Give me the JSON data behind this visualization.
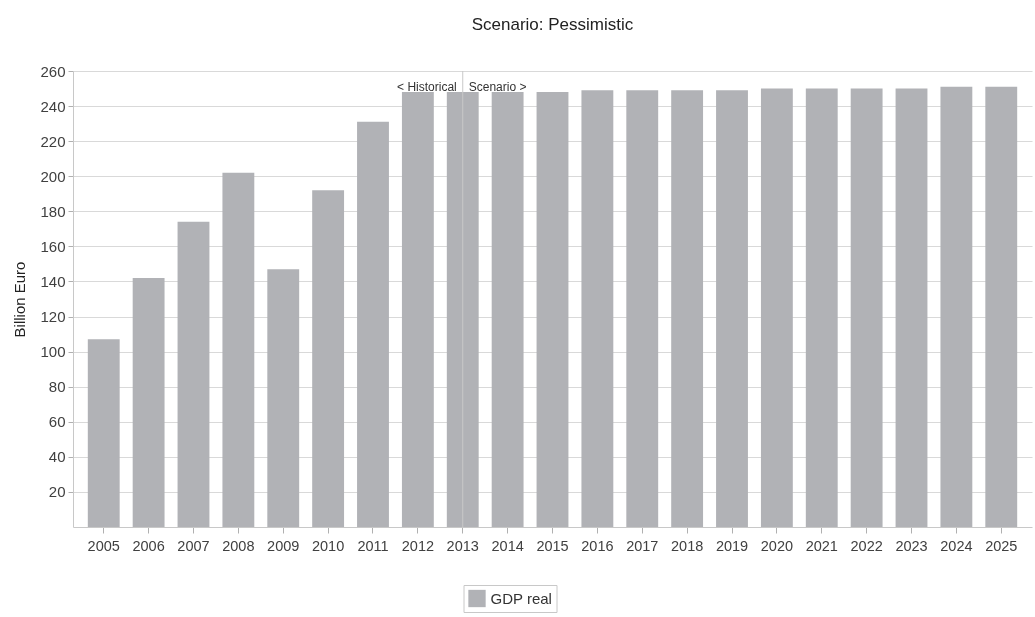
{
  "chart_data": {
    "type": "bar",
    "title": "Scenario: Pessimistic",
    "ylabel": "Billion Euro",
    "categories": [
      "2005",
      "2006",
      "2007",
      "2008",
      "2009",
      "2010",
      "2011",
      "2012",
      "2013",
      "2014",
      "2015",
      "2016",
      "2017",
      "2018",
      "2019",
      "2020",
      "2021",
      "2022",
      "2023",
      "2024",
      "2025"
    ],
    "series": [
      {
        "name": "GDP real",
        "color": "#b1b2b6",
        "values": [
          107,
          142,
          174,
          202,
          147,
          192,
          231,
          248,
          248,
          248,
          248,
          249,
          249,
          249,
          249,
          250,
          250,
          250,
          250,
          251,
          251
        ]
      }
    ],
    "ylim": [
      0,
      260
    ],
    "yticks": [
      20,
      40,
      60,
      80,
      100,
      120,
      140,
      160,
      180,
      200,
      220,
      240,
      260
    ],
    "grid": "y",
    "legend": "bottom",
    "ref_lines": [
      {
        "axis": "x",
        "value": "2013",
        "color": "#c8c8c8"
      }
    ],
    "annotations": [
      {
        "text": "< Historical",
        "x": "2013"
      },
      {
        "text": "Scenario >",
        "x": "2013"
      }
    ]
  }
}
